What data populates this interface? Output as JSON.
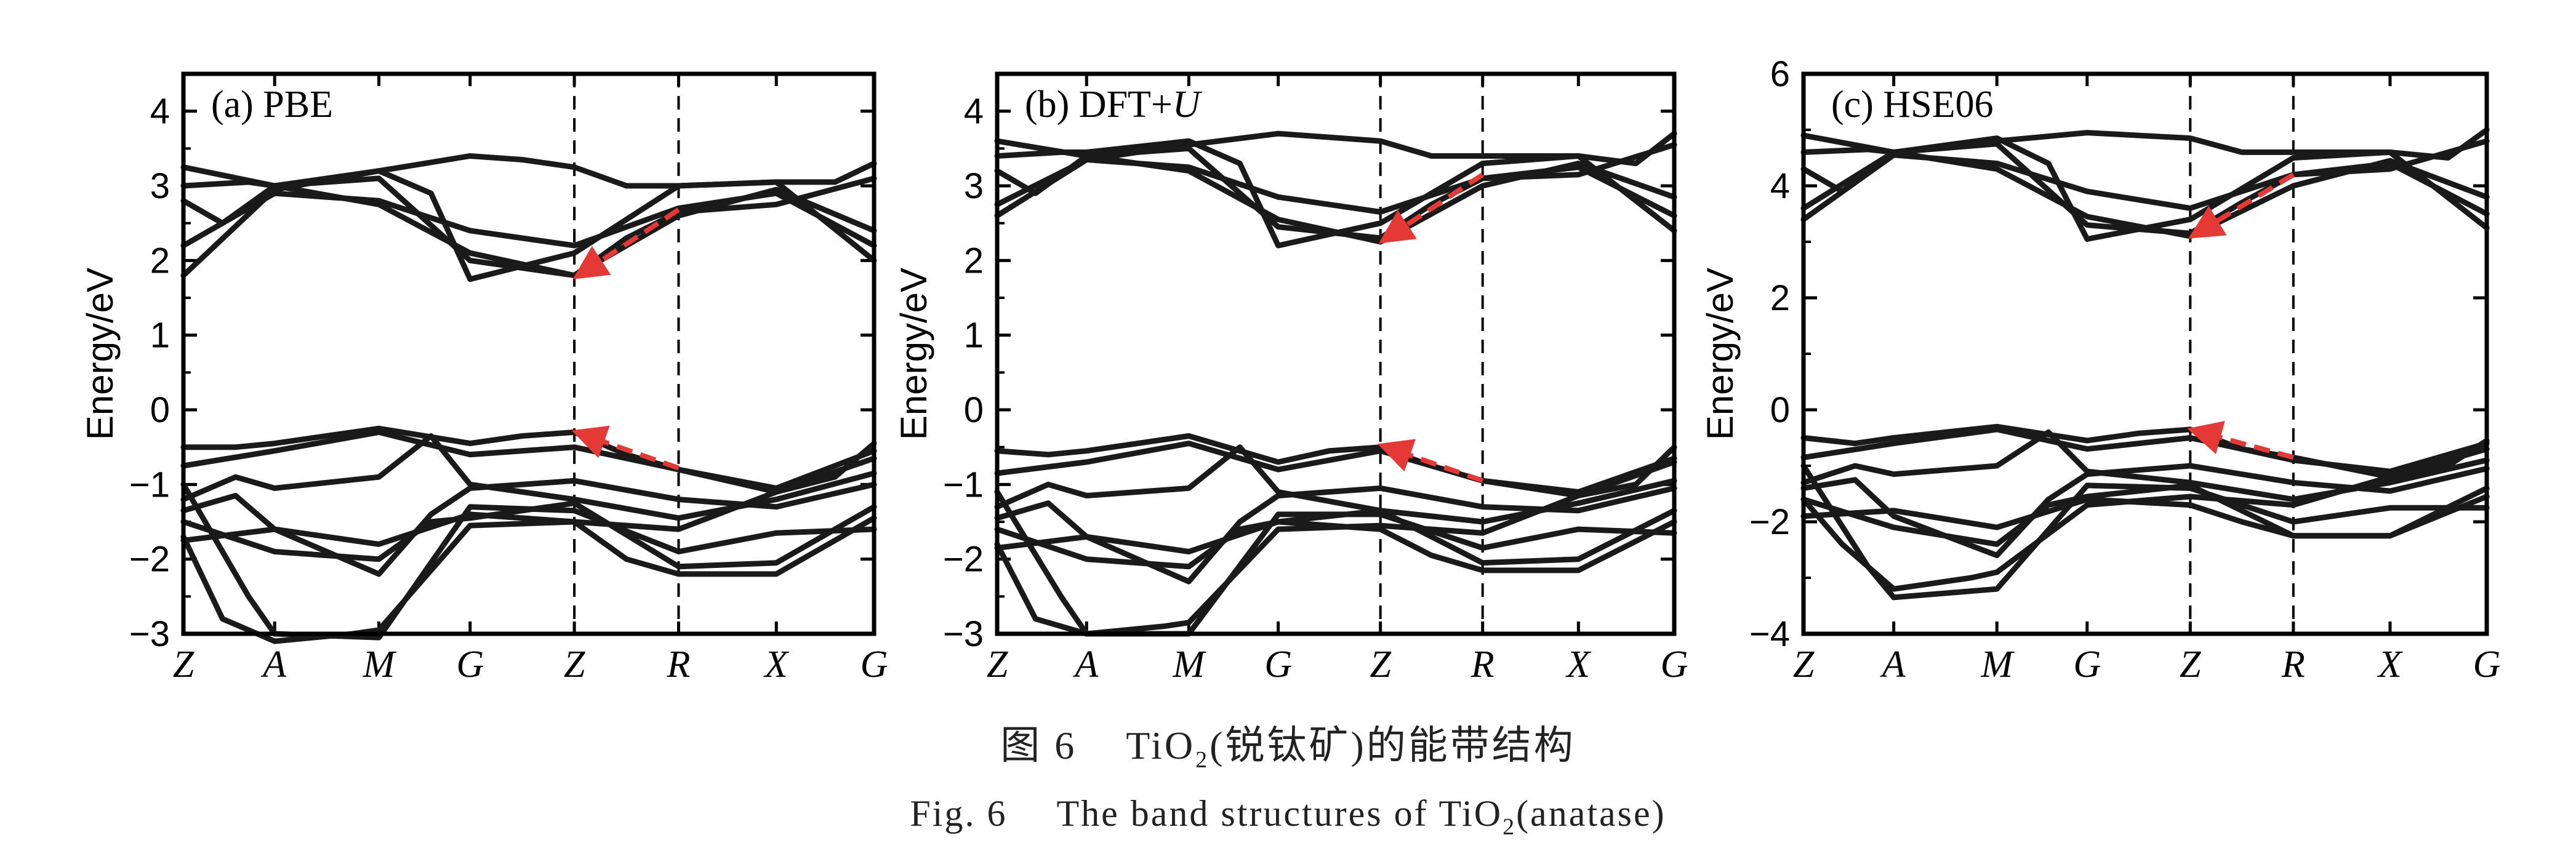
{
  "chart_data": [
    {
      "type": "line",
      "title": "(a) PBE",
      "ylabel": "Energy/eV",
      "ylim": [
        -3,
        4.5
      ],
      "yticks": [
        "−3",
        "−2",
        "−1",
        "0",
        "1",
        "2",
        "3",
        "4"
      ],
      "ytick_values": [
        -3,
        -2,
        -1,
        0,
        1,
        2,
        3,
        4
      ],
      "k_path": [
        "Z",
        "A",
        "M",
        "G",
        "Z",
        "R",
        "X",
        "G"
      ],
      "k_positions": [
        0,
        0.7,
        1.5,
        2.2,
        3.0,
        3.8,
        4.55,
        5.3
      ],
      "dashed_lines_at": [
        "Z",
        "R"
      ],
      "grid": false,
      "band_color": "#1a1a1a",
      "arrow_color": "#e53935",
      "arrows": [
        {
          "from": [
            3.8,
            2.68
          ],
          "to": [
            3.05,
            1.82
          ]
        },
        {
          "from": [
            3.8,
            -0.78
          ],
          "to": [
            3.05,
            -0.32
          ]
        }
      ],
      "series": [
        {
          "x": [
            0,
            0.7,
            1.5,
            2.2,
            2.6,
            3.0,
            3.4,
            3.8,
            4.55,
            5.0,
            5.3
          ],
          "y": [
            1.8,
            2.95,
            3.2,
            3.4,
            3.35,
            3.25,
            3.0,
            3.0,
            3.05,
            3.05,
            3.3
          ]
        },
        {
          "x": [
            0,
            0.7,
            1.5,
            2.2,
            3.0,
            3.8,
            4.55,
            5.3
          ],
          "y": [
            2.2,
            2.9,
            2.8,
            2.4,
            2.2,
            2.7,
            2.9,
            2.2
          ]
        },
        {
          "x": [
            0,
            0.7,
            1.5,
            2.2,
            3.0,
            3.4,
            3.8,
            4.55,
            5.3
          ],
          "y": [
            3.25,
            3.0,
            3.1,
            2.0,
            1.8,
            2.3,
            2.65,
            2.75,
            3.1
          ]
        },
        {
          "x": [
            0,
            0.5,
            0.7,
            1.5,
            1.9,
            2.2,
            3.0,
            3.8,
            4.55,
            5.3
          ],
          "y": [
            3.0,
            3.05,
            3.0,
            3.2,
            2.9,
            1.75,
            2.1,
            3.0,
            3.05,
            2.0
          ]
        },
        {
          "x": [
            0,
            0.3,
            0.7,
            1.5,
            2.2,
            3.0,
            3.8,
            4.55,
            5.3
          ],
          "y": [
            2.8,
            2.5,
            3.0,
            2.75,
            2.1,
            1.8,
            2.6,
            2.95,
            2.4
          ]
        },
        {
          "x": [
            0,
            0.4,
            0.7,
            1.5,
            2.2,
            2.6,
            3.0,
            3.4,
            3.8,
            4.55,
            5.0,
            5.3
          ],
          "y": [
            -0.5,
            -0.5,
            -0.45,
            -0.25,
            -0.45,
            -0.35,
            -0.3,
            -0.6,
            -0.8,
            -1.1,
            -0.9,
            -0.45
          ]
        },
        {
          "x": [
            0,
            0.7,
            1.5,
            2.2,
            3.0,
            3.8,
            4.55,
            5.3
          ],
          "y": [
            -0.75,
            -0.55,
            -0.3,
            -0.6,
            -0.5,
            -0.8,
            -1.05,
            -0.55
          ]
        },
        {
          "x": [
            0,
            0.4,
            0.7,
            1.5,
            1.9,
            2.2,
            3.0,
            3.8,
            4.55,
            5.3
          ],
          "y": [
            -1.2,
            -0.9,
            -1.05,
            -0.9,
            -0.35,
            -1.0,
            -1.2,
            -1.45,
            -1.2,
            -0.85
          ]
        },
        {
          "x": [
            0,
            0.4,
            0.7,
            1.5,
            1.9,
            2.2,
            3.0,
            3.8,
            4.55,
            5.3
          ],
          "y": [
            -1.35,
            -1.15,
            -1.6,
            -2.2,
            -1.4,
            -1.05,
            -0.95,
            -1.2,
            -1.3,
            -1.0
          ]
        },
        {
          "x": [
            0,
            0.7,
            1.5,
            1.9,
            2.2,
            3.0,
            3.8,
            4.55,
            5.3
          ],
          "y": [
            -1.5,
            -1.9,
            -2.0,
            -1.5,
            -1.45,
            -1.25,
            -2.1,
            -2.05,
            -1.3
          ]
        },
        {
          "x": [
            0,
            0.7,
            1.5,
            2.2,
            3.0,
            3.4,
            3.8,
            4.55,
            5.3
          ],
          "y": [
            -1.75,
            -1.6,
            -1.8,
            -1.4,
            -1.5,
            -2.0,
            -2.2,
            -2.2,
            -1.45
          ]
        },
        {
          "x": [
            0,
            0.5,
            0.7,
            1.5,
            2.2,
            3.0,
            3.8,
            4.55,
            5.3
          ],
          "y": [
            -1.0,
            -2.5,
            -3.0,
            -3.05,
            -1.3,
            -1.35,
            -1.9,
            -1.65,
            -1.6
          ]
        },
        {
          "x": [
            0,
            0.3,
            0.7,
            1.3,
            1.5,
            2.2,
            3.0,
            3.8,
            4.55,
            5.3
          ],
          "y": [
            -1.7,
            -2.8,
            -3.1,
            -3.0,
            -2.95,
            -1.55,
            -1.5,
            -1.6,
            -1.1,
            -0.65
          ]
        }
      ]
    },
    {
      "type": "line",
      "title": "(b) DFT+",
      "title_italic": "U",
      "ylabel": "Energy/eV",
      "ylim": [
        -3,
        4.5
      ],
      "yticks": [
        "−3",
        "−2",
        "−1",
        "0",
        "1",
        "2",
        "3",
        "4"
      ],
      "ytick_values": [
        -3,
        -2,
        -1,
        0,
        1,
        2,
        3,
        4
      ],
      "k_path": [
        "Z",
        "A",
        "M",
        "G",
        "Z",
        "R",
        "X",
        "G"
      ],
      "k_positions": [
        0,
        0.7,
        1.5,
        2.2,
        3.0,
        3.8,
        4.55,
        5.3
      ],
      "dashed_lines_at": [
        "Z",
        "R"
      ],
      "grid": false,
      "band_color": "#1a1a1a",
      "arrow_color": "#e53935",
      "arrows": [
        {
          "from": [
            3.8,
            3.15
          ],
          "to": [
            3.05,
            2.3
          ]
        },
        {
          "from": [
            3.8,
            -0.95
          ],
          "to": [
            3.05,
            -0.5
          ]
        }
      ],
      "series": [
        {
          "x": [
            0,
            0.7,
            1.5,
            2.2,
            2.6,
            3.0,
            3.4,
            3.8,
            4.55,
            5.0,
            5.3
          ],
          "y": [
            2.75,
            3.35,
            3.55,
            3.7,
            3.65,
            3.6,
            3.4,
            3.4,
            3.4,
            3.3,
            3.7
          ]
        },
        {
          "x": [
            0,
            0.7,
            1.5,
            2.2,
            3.0,
            3.8,
            4.55,
            5.3
          ],
          "y": [
            2.6,
            3.35,
            3.25,
            2.85,
            2.65,
            3.1,
            3.25,
            2.6
          ]
        },
        {
          "x": [
            0,
            0.7,
            1.5,
            2.2,
            3.0,
            3.4,
            3.8,
            4.55,
            5.3
          ],
          "y": [
            3.6,
            3.4,
            3.5,
            2.45,
            2.3,
            2.75,
            3.1,
            3.15,
            3.55
          ]
        },
        {
          "x": [
            0,
            0.5,
            0.7,
            1.5,
            1.9,
            2.2,
            3.0,
            3.8,
            4.55,
            5.3
          ],
          "y": [
            3.4,
            3.45,
            3.45,
            3.6,
            3.3,
            2.2,
            2.5,
            3.3,
            3.4,
            2.4
          ]
        },
        {
          "x": [
            0,
            0.3,
            0.7,
            1.5,
            2.2,
            3.0,
            3.8,
            4.55,
            5.3
          ],
          "y": [
            3.2,
            2.9,
            3.4,
            3.2,
            2.55,
            2.25,
            3.0,
            3.3,
            2.85
          ]
        },
        {
          "x": [
            0,
            0.4,
            0.7,
            1.5,
            2.2,
            2.6,
            3.0,
            3.4,
            3.8,
            4.55,
            5.0,
            5.3
          ],
          "y": [
            -0.55,
            -0.6,
            -0.55,
            -0.35,
            -0.7,
            -0.55,
            -0.5,
            -0.75,
            -0.95,
            -1.15,
            -1.0,
            -0.5
          ]
        },
        {
          "x": [
            0,
            0.7,
            1.5,
            2.2,
            3.0,
            3.8,
            4.55,
            5.3
          ],
          "y": [
            -0.85,
            -0.7,
            -0.45,
            -0.8,
            -0.55,
            -0.95,
            -1.1,
            -0.65
          ]
        },
        {
          "x": [
            0,
            0.4,
            0.7,
            1.5,
            1.9,
            2.2,
            3.0,
            3.8,
            4.55,
            5.3
          ],
          "y": [
            -1.3,
            -1.0,
            -1.15,
            -1.05,
            -0.5,
            -1.1,
            -1.35,
            -1.5,
            -1.25,
            -0.95
          ]
        },
        {
          "x": [
            0,
            0.4,
            0.7,
            1.5,
            1.9,
            2.2,
            3.0,
            3.8,
            4.55,
            5.3
          ],
          "y": [
            -1.45,
            -1.25,
            -1.7,
            -2.3,
            -1.5,
            -1.15,
            -1.05,
            -1.3,
            -1.35,
            -1.05
          ]
        },
        {
          "x": [
            0,
            0.7,
            1.5,
            1.9,
            2.2,
            3.0,
            3.8,
            4.55,
            5.3
          ],
          "y": [
            -1.6,
            -2.0,
            -2.1,
            -1.6,
            -1.5,
            -1.35,
            -2.05,
            -2.0,
            -1.35
          ]
        },
        {
          "x": [
            0,
            0.7,
            1.5,
            2.2,
            3.0,
            3.4,
            3.8,
            4.55,
            5.3
          ],
          "y": [
            -1.85,
            -1.7,
            -1.9,
            -1.5,
            -1.6,
            -1.95,
            -2.15,
            -2.15,
            -1.5
          ]
        },
        {
          "x": [
            0,
            0.5,
            0.7,
            1.5,
            2.2,
            3.0,
            3.8,
            4.55,
            5.3
          ],
          "y": [
            -1.1,
            -2.5,
            -3.0,
            -3.0,
            -1.4,
            -1.4,
            -1.85,
            -1.6,
            -1.65
          ]
        },
        {
          "x": [
            0,
            0.3,
            0.7,
            1.3,
            1.5,
            2.2,
            3.0,
            3.8,
            4.55,
            5.3
          ],
          "y": [
            -1.8,
            -2.8,
            -3.0,
            -2.9,
            -2.85,
            -1.6,
            -1.55,
            -1.65,
            -1.15,
            -0.7
          ]
        }
      ]
    },
    {
      "type": "line",
      "title": "(c) HSE06",
      "ylabel": "Energy/eV",
      "ylim": [
        -4,
        6
      ],
      "yticks": [
        "−4",
        "−2",
        "0",
        "2",
        "4",
        "6"
      ],
      "ytick_values": [
        -4,
        -2,
        0,
        2,
        4,
        6
      ],
      "k_path": [
        "Z",
        "A",
        "M",
        "G",
        "Z",
        "R",
        "X",
        "G"
      ],
      "k_positions": [
        0,
        0.7,
        1.5,
        2.2,
        3.0,
        3.8,
        4.55,
        5.3
      ],
      "dashed_lines_at": [
        "Z",
        "R"
      ],
      "grid": false,
      "band_color": "#1a1a1a",
      "arrow_color": "#e53935",
      "arrows": [
        {
          "from": [
            3.8,
            4.2
          ],
          "to": [
            3.05,
            3.15
          ]
        },
        {
          "from": [
            3.8,
            -0.85
          ],
          "to": [
            3.05,
            -0.38
          ]
        }
      ],
      "series": [
        {
          "x": [
            0,
            0.7,
            1.5,
            2.2,
            2.6,
            3.0,
            3.4,
            3.8,
            4.55,
            5.0,
            5.3
          ],
          "y": [
            3.6,
            4.6,
            4.8,
            4.95,
            4.9,
            4.85,
            4.6,
            4.6,
            4.6,
            4.5,
            5.0
          ]
        },
        {
          "x": [
            0,
            0.7,
            1.5,
            2.2,
            3.0,
            3.8,
            4.55,
            5.3
          ],
          "y": [
            3.4,
            4.55,
            4.4,
            3.9,
            3.6,
            4.2,
            4.4,
            3.5
          ]
        },
        {
          "x": [
            0,
            0.7,
            1.5,
            2.2,
            3.0,
            3.4,
            3.8,
            4.55,
            5.3
          ],
          "y": [
            4.9,
            4.6,
            4.75,
            3.3,
            3.15,
            3.7,
            4.2,
            4.3,
            4.8
          ]
        },
        {
          "x": [
            0,
            0.5,
            0.7,
            1.5,
            1.9,
            2.2,
            3.0,
            3.8,
            4.55,
            5.3
          ],
          "y": [
            4.6,
            4.65,
            4.6,
            4.85,
            4.4,
            3.05,
            3.4,
            4.5,
            4.6,
            3.25
          ]
        },
        {
          "x": [
            0,
            0.3,
            0.7,
            1.5,
            2.2,
            3.0,
            3.8,
            4.55,
            5.3
          ],
          "y": [
            4.3,
            3.9,
            4.6,
            4.3,
            3.45,
            3.1,
            4.0,
            4.45,
            3.8
          ]
        },
        {
          "x": [
            0,
            0.4,
            0.7,
            1.5,
            2.2,
            2.6,
            3.0,
            3.4,
            3.8,
            4.55,
            5.0,
            5.3
          ],
          "y": [
            -0.5,
            -0.6,
            -0.5,
            -0.3,
            -0.55,
            -0.42,
            -0.35,
            -0.7,
            -0.85,
            -1.2,
            -1.0,
            -0.55
          ]
        },
        {
          "x": [
            0,
            0.7,
            1.5,
            2.2,
            3.0,
            3.8,
            4.55,
            5.3
          ],
          "y": [
            -0.85,
            -0.6,
            -0.35,
            -0.7,
            -0.5,
            -0.9,
            -1.1,
            -0.6
          ]
        },
        {
          "x": [
            0,
            0.4,
            0.7,
            1.5,
            1.9,
            2.2,
            3.0,
            3.8,
            4.55,
            5.3
          ],
          "y": [
            -1.3,
            -1.0,
            -1.15,
            -1.0,
            -0.4,
            -1.1,
            -1.3,
            -1.6,
            -1.3,
            -0.9
          ]
        },
        {
          "x": [
            0,
            0.4,
            0.7,
            1.5,
            1.9,
            2.2,
            3.0,
            3.8,
            4.55,
            5.3
          ],
          "y": [
            -1.4,
            -1.25,
            -1.9,
            -2.6,
            -1.6,
            -1.15,
            -1.0,
            -1.3,
            -1.45,
            -1.05
          ]
        },
        {
          "x": [
            0,
            0.7,
            1.5,
            1.9,
            2.2,
            3.0,
            3.8,
            4.55,
            5.3
          ],
          "y": [
            -1.6,
            -2.1,
            -2.4,
            -1.7,
            -1.55,
            -1.35,
            -2.25,
            -2.25,
            -1.4
          ]
        },
        {
          "x": [
            0,
            0.7,
            1.5,
            2.2,
            3.0,
            3.4,
            3.8,
            4.55,
            5.3
          ],
          "y": [
            -1.9,
            -1.8,
            -2.1,
            -1.6,
            -1.7,
            -2.0,
            -2.25,
            -2.25,
            -1.55
          ]
        },
        {
          "x": [
            0,
            0.5,
            0.7,
            1.5,
            2.2,
            3.0,
            3.8,
            4.55,
            5.3
          ],
          "y": [
            -1.0,
            -2.8,
            -3.35,
            -3.2,
            -1.35,
            -1.4,
            -2.0,
            -1.75,
            -1.75
          ]
        },
        {
          "x": [
            0,
            0.3,
            0.7,
            1.3,
            1.5,
            2.2,
            3.0,
            3.8,
            4.55,
            5.3
          ],
          "y": [
            -1.6,
            -2.4,
            -3.2,
            -3.0,
            -2.9,
            -1.7,
            -1.55,
            -1.7,
            -1.2,
            -0.7
          ]
        }
      ]
    }
  ],
  "caption": {
    "cn_fig": "图 6",
    "cn_pre": "TiO",
    "cn_sub": "2",
    "cn_post": "(锐钛矿)的能带结构",
    "en_fig": "Fig. 6",
    "en_pre": "The band structures of TiO",
    "en_sub": "2",
    "en_post": "(anatase)"
  }
}
